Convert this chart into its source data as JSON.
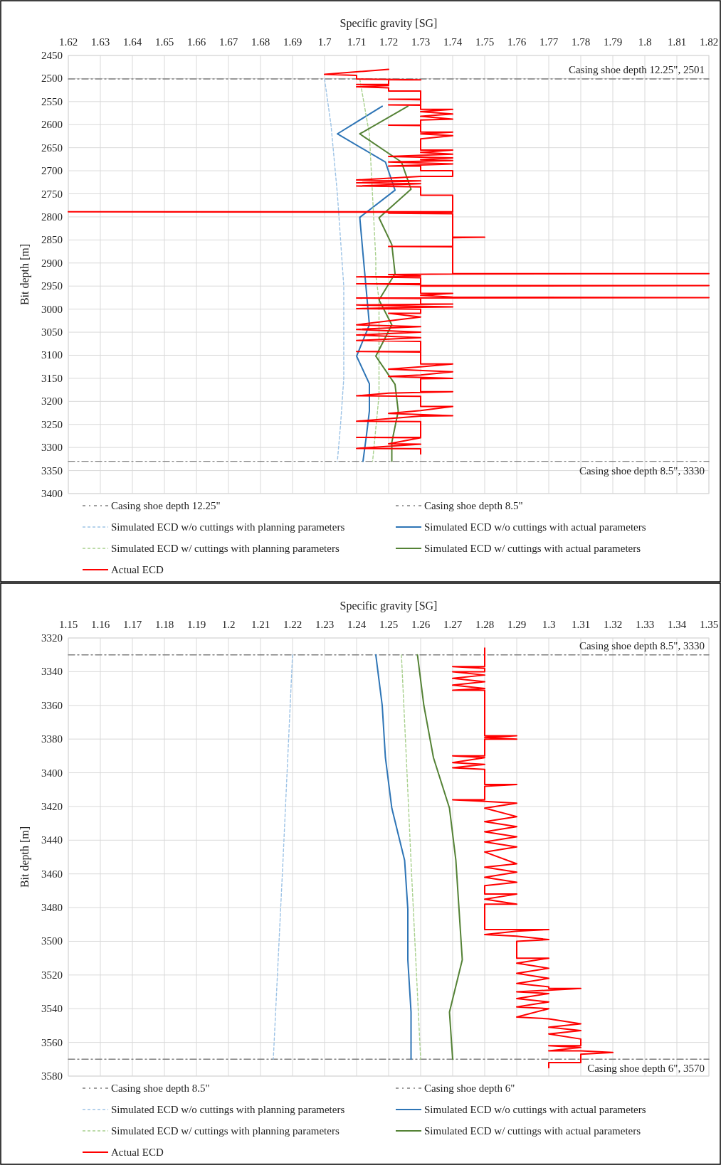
{
  "chart_data": [
    {
      "type": "line",
      "xlabel": "Specific gravity [SG]",
      "ylabel": "Bit depth [m]",
      "xlim": [
        1.62,
        1.82
      ],
      "xticks": [
        1.62,
        1.63,
        1.64,
        1.65,
        1.66,
        1.67,
        1.68,
        1.69,
        1.7,
        1.71,
        1.72,
        1.73,
        1.74,
        1.75,
        1.76,
        1.77,
        1.78,
        1.79,
        1.8,
        1.81,
        1.82
      ],
      "ylim": [
        3400,
        2450
      ],
      "yticks": [
        2450,
        2500,
        2550,
        2600,
        2650,
        2700,
        2750,
        2800,
        2850,
        2900,
        2950,
        3000,
        3050,
        3100,
        3150,
        3200,
        3250,
        3300,
        3350,
        3400
      ],
      "grid": true,
      "legend": "bottom",
      "annotations": [
        {
          "text": "Casing shoe depth 12.25\", 2501",
          "y": 2501
        },
        {
          "text": "Casing shoe depth 8.5\", 3330",
          "y": 3330
        }
      ],
      "series": [
        {
          "name": "Casing shoe depth 12.25\"",
          "type": "line",
          "color": "#7f7f7f",
          "line_style": "dashdot",
          "x": [
            1.62,
            1.82
          ],
          "values": [
            2501,
            2501
          ]
        },
        {
          "name": "Casing shoe depth 8.5\"",
          "type": "line",
          "color": "#7f7f7f",
          "line_style": "dashdot",
          "x": [
            1.62,
            1.82
          ],
          "values": [
            3330,
            3330
          ]
        },
        {
          "name": "Simulated ECD w/o cuttings with planning parameters",
          "type": "line",
          "color": "#9dc3e6",
          "line_style": "dashed",
          "x": [
            1.7,
            1.702,
            1.704,
            1.705,
            1.706,
            1.706,
            1.706,
            1.705,
            1.704
          ],
          "values": [
            2501,
            2600,
            2750,
            2850,
            2950,
            3100,
            3150,
            3250,
            3330
          ]
        },
        {
          "name": "Simulated ECD w/o cuttings with actual parameters",
          "type": "line",
          "color": "#2e75b6",
          "line_style": "solid",
          "x": [
            1.718,
            1.704,
            1.719,
            1.722,
            1.711,
            1.712,
            1.714,
            1.71,
            1.714,
            1.714,
            1.713,
            1.712
          ],
          "values": [
            2560,
            2620,
            2681,
            2742,
            2801,
            2880,
            3034,
            3102,
            3162,
            3221,
            3278,
            3330
          ]
        },
        {
          "name": "Simulated ECD w/ cuttings with planning parameters",
          "type": "line",
          "color": "#a9d18e",
          "line_style": "dashed",
          "x": [
            1.711,
            1.714,
            1.716,
            1.716,
            1.717,
            1.717,
            1.715
          ],
          "values": [
            2501,
            2621,
            2891,
            2926,
            2980,
            3187,
            3330
          ]
        },
        {
          "name": "Simulated ECD w/ cuttings with actual parameters",
          "type": "line",
          "color": "#548235",
          "line_style": "solid",
          "x": [
            1.726,
            1.711,
            1.724,
            1.727,
            1.717,
            1.721,
            1.722,
            1.717,
            1.721,
            1.716,
            1.722,
            1.723,
            1.721,
            1.721
          ],
          "values": [
            2560,
            2620,
            2681,
            2740,
            2802,
            2860,
            2923,
            2980,
            3034,
            3102,
            3163,
            3221,
            3289,
            3330
          ]
        },
        {
          "name": "Actual ECD",
          "type": "line",
          "color": "#ff0000",
          "line_style": "solid",
          "x": [
            1.72,
            1.7,
            1.71,
            1.71,
            1.73,
            1.72,
            1.72,
            1.71,
            1.72,
            1.71,
            1.72,
            1.72,
            1.73,
            1.73,
            1.72,
            1.73,
            1.73,
            1.72,
            1.73,
            1.73,
            1.74,
            1.73,
            1.74,
            1.73,
            1.74,
            1.73,
            1.73,
            1.72,
            1.73,
            1.73,
            1.74,
            1.73,
            1.74,
            1.73,
            1.73,
            1.74,
            1.73,
            1.74,
            1.72,
            1.74,
            1.73,
            1.74,
            1.72,
            1.74,
            1.72,
            1.73,
            1.73,
            1.74,
            1.74,
            1.73,
            1.71,
            1.73,
            1.71,
            1.73,
            1.71,
            1.73,
            1.73,
            1.74,
            1.74,
            1.62,
            1.74,
            1.72,
            1.74,
            1.74,
            1.75,
            1.74,
            1.74,
            1.72,
            1.74,
            1.74,
            1.82,
            1.74,
            1.72,
            1.73,
            1.71,
            1.73,
            1.73,
            1.71,
            1.73,
            1.73,
            1.82,
            1.73,
            1.73,
            1.74,
            1.73,
            1.74,
            1.82,
            1.71,
            1.73,
            1.73,
            1.74,
            1.71,
            1.74,
            1.73,
            1.71,
            1.73,
            1.73,
            1.72,
            1.73,
            1.71,
            1.73,
            1.71,
            1.73,
            1.71,
            1.73,
            1.71,
            1.73,
            1.73,
            1.71,
            1.73,
            1.73,
            1.74,
            1.73,
            1.72,
            1.74,
            1.73,
            1.72,
            1.74,
            1.73,
            1.73,
            1.74,
            1.72,
            1.71,
            1.73,
            1.73,
            1.74,
            1.73,
            1.72,
            1.74,
            1.73,
            1.71,
            1.73,
            1.73,
            1.71,
            1.73,
            1.72,
            1.73,
            1.71,
            1.73,
            1.73
          ],
          "values": [
            2480,
            2491,
            2493,
            2501,
            2503,
            2503,
            2513,
            2513,
            2515,
            2518,
            2520,
            2527,
            2527,
            2545,
            2545,
            2546,
            2557,
            2557,
            2558,
            2567,
            2567,
            2572,
            2577,
            2582,
            2588,
            2590,
            2601,
            2601,
            2602,
            2616,
            2616,
            2620,
            2624,
            2631,
            2655,
            2655,
            2660,
            2664,
            2669,
            2672,
            2676,
            2678,
            2681,
            2685,
            2690,
            2690,
            2700,
            2700,
            2712,
            2712,
            2720,
            2722,
            2726,
            2728,
            2733,
            2735,
            2753,
            2753,
            2789,
            2789,
            2790,
            2792,
            2793,
            2844,
            2844,
            2845,
            2864,
            2864,
            2865,
            2923,
            2923,
            2924,
            2925,
            2928,
            2930,
            2932,
            2945,
            2945,
            2947,
            2949,
            2949,
            2950,
            2966,
            2966,
            2970,
            2974,
            2975,
            2976,
            2977,
            2989,
            2989,
            2991,
            2995,
            2996,
            2999,
            3000,
            3009,
            3009,
            3017,
            3034,
            3038,
            3044,
            3050,
            3056,
            3062,
            3068,
            3070,
            3092,
            3092,
            3093,
            3119,
            3119,
            3125,
            3130,
            3136,
            3143,
            3146,
            3150,
            3151,
            3179,
            3179,
            3182,
            3188,
            3189,
            3211,
            3211,
            3220,
            3226,
            3231,
            3232,
            3243,
            3244,
            3278,
            3278,
            3279,
            3292,
            3293,
            3302,
            3303,
            3314
          ]
        }
      ]
    },
    {
      "type": "line",
      "xlabel": "Specific gravity [SG]",
      "ylabel": "Bit depth [m]",
      "xlim": [
        1.15,
        1.35
      ],
      "xticks": [
        1.15,
        1.16,
        1.17,
        1.18,
        1.19,
        1.2,
        1.21,
        1.22,
        1.23,
        1.24,
        1.25,
        1.26,
        1.27,
        1.28,
        1.29,
        1.3,
        1.31,
        1.32,
        1.33,
        1.34,
        1.35
      ],
      "ylim": [
        3580,
        3320
      ],
      "yticks": [
        3320,
        3340,
        3360,
        3380,
        3400,
        3420,
        3440,
        3460,
        3480,
        3500,
        3520,
        3540,
        3560,
        3580
      ],
      "grid": true,
      "legend": "bottom",
      "annotations": [
        {
          "text": "Casing shoe depth 8.5\", 3330",
          "y": 3330
        },
        {
          "text": "Casing shoe depth 6\", 3570",
          "y": 3570
        }
      ],
      "series": [
        {
          "name": "Casing shoe depth 8.5\"",
          "type": "line",
          "color": "#7f7f7f",
          "line_style": "dashdot",
          "x": [
            1.15,
            1.35
          ],
          "values": [
            3330,
            3330
          ]
        },
        {
          "name": "Casing shoe depth 6\"",
          "type": "line",
          "color": "#7f7f7f",
          "line_style": "dashdot",
          "x": [
            1.15,
            1.35
          ],
          "values": [
            3570,
            3570
          ]
        },
        {
          "name": "Simulated ECD w/o cuttings with planning parameters",
          "type": "line",
          "color": "#9dc3e6",
          "line_style": "dashed",
          "x": [
            1.22,
            1.217,
            1.214
          ],
          "values": [
            3330,
            3453,
            3570
          ]
        },
        {
          "name": "Simulated ECD w/o cuttings with actual parameters",
          "type": "line",
          "color": "#2e75b6",
          "line_style": "solid",
          "x": [
            1.246,
            1.248,
            1.249,
            1.251,
            1.255,
            1.256,
            1.256,
            1.257,
            1.257
          ],
          "values": [
            3330,
            3360,
            3391,
            3421,
            3452,
            3481,
            3511,
            3542,
            3570
          ]
        },
        {
          "name": "Simulated ECD w/ cuttings with planning parameters",
          "type": "line",
          "color": "#a9d18e",
          "line_style": "dashed",
          "x": [
            1.254,
            1.2555,
            1.257,
            1.26
          ],
          "values": [
            3330,
            3390,
            3453,
            3570
          ]
        },
        {
          "name": "Simulated ECD w/ cuttings with actual parameters",
          "type": "line",
          "color": "#548235",
          "line_style": "solid",
          "x": [
            1.259,
            1.261,
            1.264,
            1.269,
            1.271,
            1.273,
            1.269,
            1.27
          ],
          "values": [
            3330,
            3360,
            3391,
            3421,
            3452,
            3511,
            3542,
            3570
          ]
        },
        {
          "name": "Actual ECD",
          "type": "line",
          "color": "#ff0000",
          "line_style": "solid",
          "x": [
            1.28,
            1.28,
            1.27,
            1.28,
            1.28,
            1.27,
            1.28,
            1.27,
            1.28,
            1.27,
            1.28,
            1.27,
            1.28,
            1.28,
            1.29,
            1.28,
            1.29,
            1.28,
            1.28,
            1.27,
            1.28,
            1.27,
            1.28,
            1.27,
            1.28,
            1.28,
            1.29,
            1.28,
            1.28,
            1.27,
            1.28,
            1.29,
            1.28,
            1.29,
            1.28,
            1.29,
            1.28,
            1.29,
            1.28,
            1.29,
            1.28,
            1.29,
            1.28,
            1.29,
            1.28,
            1.29,
            1.28,
            1.28,
            1.29,
            1.28,
            1.29,
            1.28,
            1.28,
            1.29,
            1.3,
            1.29,
            1.28,
            1.29,
            1.3,
            1.29,
            1.29,
            1.3,
            1.29,
            1.3,
            1.29,
            1.3,
            1.29,
            1.3,
            1.3,
            1.31,
            1.3,
            1.29,
            1.3,
            1.29,
            1.3,
            1.29,
            1.3,
            1.29,
            1.3,
            1.31,
            1.3,
            1.31,
            1.3,
            1.31,
            1.31,
            1.3,
            1.31,
            1.3,
            1.31,
            1.32,
            1.31,
            1.31,
            1.3,
            1.3
          ],
          "values": [
            3326,
            3337,
            3337,
            3338,
            3340,
            3340,
            3342,
            3344,
            3346,
            3348,
            3350,
            3351,
            3351,
            3378,
            3378,
            3379,
            3380,
            3380,
            3390,
            3390,
            3391,
            3394,
            3395,
            3397,
            3398,
            3407,
            3407,
            3408,
            3416,
            3416,
            3417,
            3418,
            3421,
            3426,
            3429,
            3432,
            3435,
            3438,
            3441,
            3444,
            3447,
            3454,
            3456,
            3459,
            3462,
            3465,
            3467,
            3472,
            3472,
            3475,
            3478,
            3478,
            3493,
            3493,
            3493,
            3494,
            3496,
            3497,
            3499,
            3500,
            3510,
            3510,
            3513,
            3516,
            3519,
            3522,
            3525,
            3527,
            3528,
            3528,
            3529,
            3530,
            3531,
            3534,
            3536,
            3539,
            3540,
            3545,
            3546,
            3549,
            3551,
            3553,
            3555,
            3558,
            3562,
            3562,
            3563,
            3565,
            3565,
            3566,
            3567,
            3572,
            3572,
            3575
          ]
        }
      ]
    }
  ]
}
